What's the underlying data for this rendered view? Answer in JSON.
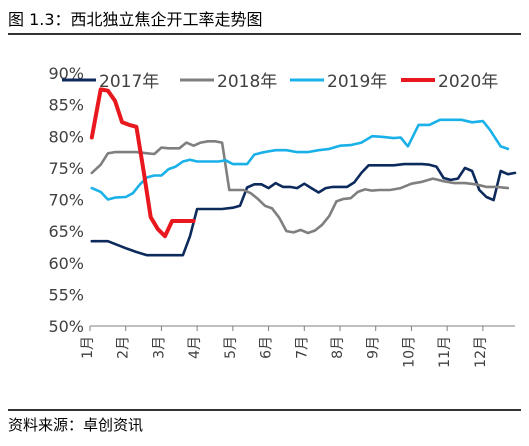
{
  "title": "图 1.3：西北独立焦企开工率走势图",
  "source": "资料来源：卓创资讯",
  "chart_data": {
    "type": "line",
    "title": "",
    "xlabel": "",
    "ylabel": "",
    "ylim": [
      0.5,
      0.9
    ],
    "y_ticks": [
      0.5,
      0.55,
      0.6,
      0.65,
      0.7,
      0.75,
      0.8,
      0.85,
      0.9
    ],
    "y_tick_labels": [
      "50%",
      "55%",
      "60%",
      "65%",
      "70%",
      "75%",
      "80%",
      "85%",
      "90%"
    ],
    "x_ticks": [
      1,
      2,
      3,
      4,
      5,
      6,
      7,
      8,
      9,
      10,
      11,
      12
    ],
    "x_tick_labels": [
      "1月",
      "2月",
      "3月",
      "4月",
      "5月",
      "6月",
      "7月",
      "8月",
      "9月",
      "10月",
      "11月",
      "12月"
    ],
    "xlim": [
      1,
      12.9
    ],
    "legend_placement": "top",
    "grid": false,
    "series": [
      {
        "name": "2017年",
        "color": "#0d2a5c",
        "x": [
          1.05,
          1.5,
          2.0,
          2.3,
          2.6,
          2.8,
          3.0,
          3.3,
          3.6,
          3.8,
          4.0,
          4.2,
          4.5,
          4.7,
          5.0,
          5.2,
          5.4,
          5.6,
          5.8,
          6.0,
          6.2,
          6.4,
          6.6,
          6.8,
          7.0,
          7.2,
          7.4,
          7.6,
          7.8,
          8.0,
          8.2,
          8.4,
          8.6,
          8.8,
          9.0,
          9.2,
          9.5,
          9.8,
          10.0,
          10.3,
          10.5,
          10.7,
          10.9,
          11.1,
          11.3,
          11.5,
          11.7,
          11.9,
          12.1,
          12.3,
          12.5,
          12.7,
          12.9
        ],
        "y": [
          0.634,
          0.634,
          0.623,
          0.617,
          0.612,
          0.612,
          0.612,
          0.612,
          0.612,
          0.642,
          0.685,
          0.685,
          0.685,
          0.685,
          0.687,
          0.69,
          0.719,
          0.724,
          0.724,
          0.718,
          0.726,
          0.72,
          0.72,
          0.718,
          0.725,
          0.718,
          0.711,
          0.718,
          0.72,
          0.72,
          0.72,
          0.727,
          0.742,
          0.754,
          0.754,
          0.754,
          0.754,
          0.756,
          0.756,
          0.756,
          0.755,
          0.752,
          0.734,
          0.731,
          0.733,
          0.75,
          0.745,
          0.715,
          0.704,
          0.699,
          0.745,
          0.74,
          0.742
        ]
      },
      {
        "name": "2018年",
        "color": "#7f7f7f",
        "x": [
          1.05,
          1.3,
          1.5,
          1.7,
          2.0,
          2.3,
          2.6,
          2.8,
          3.0,
          3.2,
          3.5,
          3.7,
          3.9,
          4.1,
          4.3,
          4.5,
          4.7,
          4.9,
          5.1,
          5.3,
          5.5,
          5.7,
          5.9,
          6.1,
          6.3,
          6.5,
          6.7,
          6.9,
          7.1,
          7.3,
          7.5,
          7.7,
          7.9,
          8.1,
          8.3,
          8.5,
          8.7,
          8.9,
          9.1,
          9.4,
          9.7,
          10.0,
          10.3,
          10.6,
          10.9,
          11.2,
          11.5,
          11.8,
          12.1,
          12.4,
          12.7
        ],
        "y": [
          0.742,
          0.755,
          0.773,
          0.775,
          0.775,
          0.775,
          0.773,
          0.772,
          0.782,
          0.781,
          0.781,
          0.79,
          0.785,
          0.79,
          0.792,
          0.792,
          0.79,
          0.715,
          0.715,
          0.715,
          0.71,
          0.701,
          0.69,
          0.686,
          0.671,
          0.65,
          0.648,
          0.652,
          0.647,
          0.651,
          0.66,
          0.674,
          0.697,
          0.701,
          0.702,
          0.712,
          0.716,
          0.714,
          0.715,
          0.715,
          0.718,
          0.725,
          0.728,
          0.733,
          0.729,
          0.726,
          0.726,
          0.724,
          0.72,
          0.72,
          0.718
        ]
      },
      {
        "name": "2019年",
        "color": "#1ab0e8",
        "x": [
          1.05,
          1.3,
          1.5,
          1.7,
          2.0,
          2.2,
          2.4,
          2.6,
          2.8,
          3.0,
          3.2,
          3.4,
          3.6,
          3.8,
          4.0,
          4.2,
          4.4,
          4.6,
          4.8,
          5.0,
          5.2,
          5.4,
          5.6,
          5.8,
          6.0,
          6.2,
          6.5,
          6.8,
          7.1,
          7.4,
          7.7,
          8.0,
          8.3,
          8.6,
          8.9,
          9.2,
          9.5,
          9.7,
          9.9,
          10.2,
          10.5,
          10.8,
          11.1,
          11.4,
          11.7,
          12.0,
          12.2,
          12.5,
          12.7
        ],
        "y": [
          0.718,
          0.712,
          0.7,
          0.703,
          0.704,
          0.71,
          0.724,
          0.735,
          0.738,
          0.738,
          0.748,
          0.752,
          0.76,
          0.763,
          0.76,
          0.76,
          0.76,
          0.76,
          0.762,
          0.756,
          0.756,
          0.756,
          0.771,
          0.774,
          0.776,
          0.778,
          0.778,
          0.775,
          0.775,
          0.778,
          0.78,
          0.785,
          0.786,
          0.79,
          0.8,
          0.799,
          0.797,
          0.798,
          0.784,
          0.818,
          0.818,
          0.826,
          0.826,
          0.826,
          0.822,
          0.824,
          0.81,
          0.784,
          0.78
        ]
      },
      {
        "name": "2020年",
        "color": "#e8181e",
        "x": [
          1.05,
          1.3,
          1.5,
          1.7,
          1.9,
          2.1,
          2.3,
          2.5,
          2.7,
          2.9,
          3.1,
          3.3,
          3.6,
          3.9
        ],
        "y": [
          0.798,
          0.874,
          0.872,
          0.856,
          0.822,
          0.818,
          0.815,
          0.745,
          0.672,
          0.653,
          0.642,
          0.666,
          0.666,
          0.666
        ]
      }
    ]
  }
}
